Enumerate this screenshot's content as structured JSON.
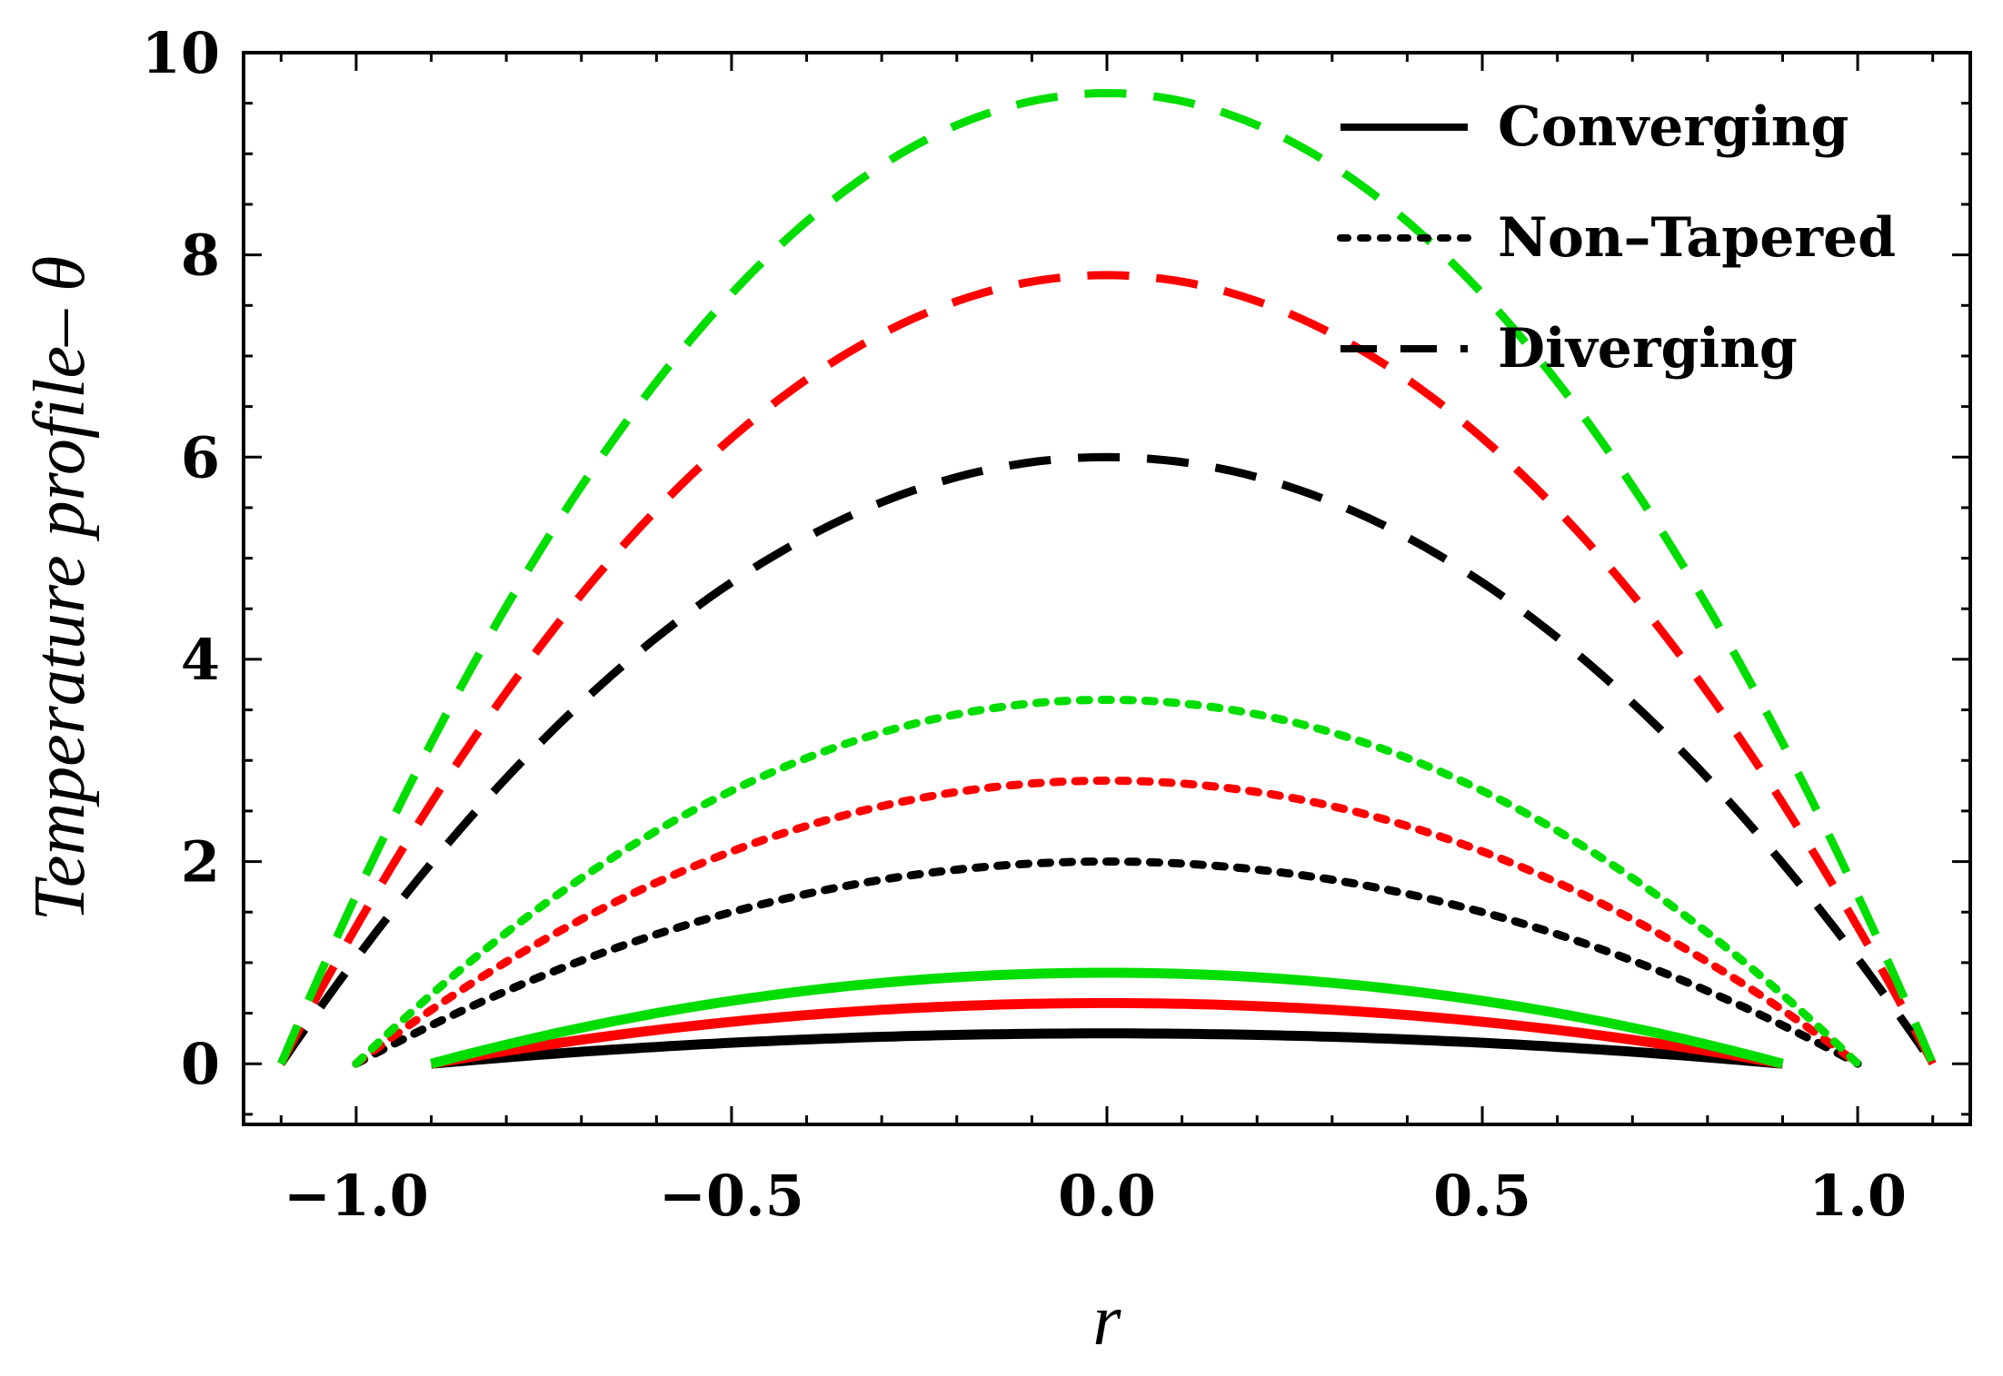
{
  "chart_data": {
    "type": "line",
    "title": "",
    "xlabel": "r",
    "ylabel": "Temperature profile– θ",
    "xlim": [
      -1.15,
      1.15
    ],
    "ylim": [
      -0.6,
      10
    ],
    "xticks": [
      -1.0,
      -0.5,
      0.0,
      0.5,
      1.0
    ],
    "xtick_labels": [
      "−1.0",
      "−0.5",
      "0.0",
      "0.5",
      "1.0"
    ],
    "yticks": [
      0,
      2,
      4,
      6,
      8,
      10
    ],
    "ytick_labels": [
      "0",
      "2",
      "4",
      "6",
      "8",
      "10"
    ],
    "grid": false,
    "legend": {
      "placement": "top-right",
      "entries": [
        {
          "label": "Converging",
          "style": "solid"
        },
        {
          "label": "Non–Tapered",
          "style": "dotted"
        },
        {
          "label": "Diverging",
          "style": "dashed"
        }
      ]
    },
    "series": [
      {
        "name": "Converging (black)",
        "color": "#000000",
        "style": "solid",
        "half_width": 0.9,
        "peak": 0.3
      },
      {
        "name": "Converging (red)",
        "color": "#ff0000",
        "style": "solid",
        "half_width": 0.9,
        "peak": 0.6
      },
      {
        "name": "Converging (green)",
        "color": "#00dd00",
        "style": "solid",
        "half_width": 0.9,
        "peak": 0.9
      },
      {
        "name": "Non-Tapered (black)",
        "color": "#000000",
        "style": "dotted",
        "half_width": 1.0,
        "peak": 2.0
      },
      {
        "name": "Non-Tapered (red)",
        "color": "#ff0000",
        "style": "dotted",
        "half_width": 1.0,
        "peak": 2.8
      },
      {
        "name": "Non-Tapered (green)",
        "color": "#00dd00",
        "style": "dotted",
        "half_width": 1.0,
        "peak": 3.6
      },
      {
        "name": "Diverging (black)",
        "color": "#000000",
        "style": "dashed",
        "half_width": 1.1,
        "peak": 6.0
      },
      {
        "name": "Diverging (red)",
        "color": "#ff0000",
        "style": "dashed",
        "half_width": 1.1,
        "peak": 7.8
      },
      {
        "name": "Diverging (green)",
        "color": "#00dd00",
        "style": "dashed",
        "half_width": 1.1,
        "peak": 9.6
      }
    ]
  }
}
